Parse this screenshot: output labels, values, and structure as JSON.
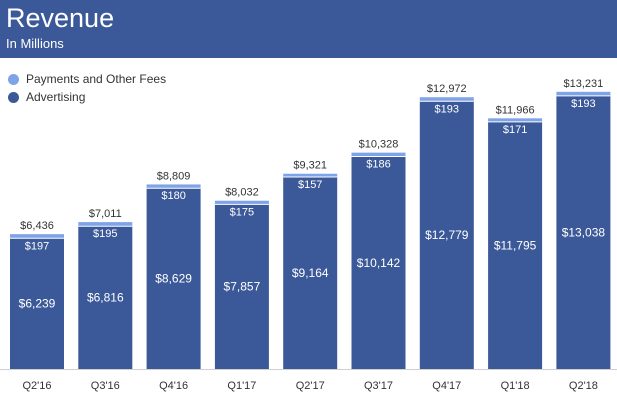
{
  "header": {
    "title": "Revenue",
    "subtitle": "In Millions"
  },
  "colors": {
    "header_bg": "#3b5998",
    "advertising": "#3b5998",
    "payments": "#7ea3e6"
  },
  "chart_data": {
    "type": "bar",
    "stacked": true,
    "title": "Revenue",
    "subtitle": "In Millions",
    "categories": [
      "Q2'16",
      "Q3'16",
      "Q4'16",
      "Q1'17",
      "Q2'17",
      "Q3'17",
      "Q4'17",
      "Q1'18",
      "Q2'18"
    ],
    "series": [
      {
        "name": "Advertising",
        "values": [
          6239,
          6816,
          8629,
          7857,
          9164,
          10142,
          12779,
          11795,
          13038
        ],
        "labels": [
          "$6,239",
          "$6,816",
          "$8,629",
          "$7,857",
          "$9,164",
          "$10,142",
          "$12,779",
          "$11,795",
          "$13,038"
        ]
      },
      {
        "name": "Payments and Other Fees",
        "values": [
          197,
          195,
          180,
          175,
          157,
          186,
          193,
          171,
          193
        ],
        "labels": [
          "$197",
          "$195",
          "$180",
          "$175",
          "$157",
          "$186",
          "$193",
          "$171",
          "$193"
        ]
      }
    ],
    "totals": [
      6436,
      7011,
      8809,
      8032,
      9321,
      10328,
      12972,
      11966,
      13231
    ],
    "total_labels": [
      "$6,436",
      "$7,011",
      "$8,809",
      "$8,032",
      "$9,321",
      "$10,328",
      "$12,972",
      "$11,966",
      "$13,231"
    ],
    "legend": [
      "Payments and Other Fees",
      "Advertising"
    ],
    "legend_position": "top-left",
    "grid": false,
    "ylim": [
      0,
      14000
    ]
  }
}
